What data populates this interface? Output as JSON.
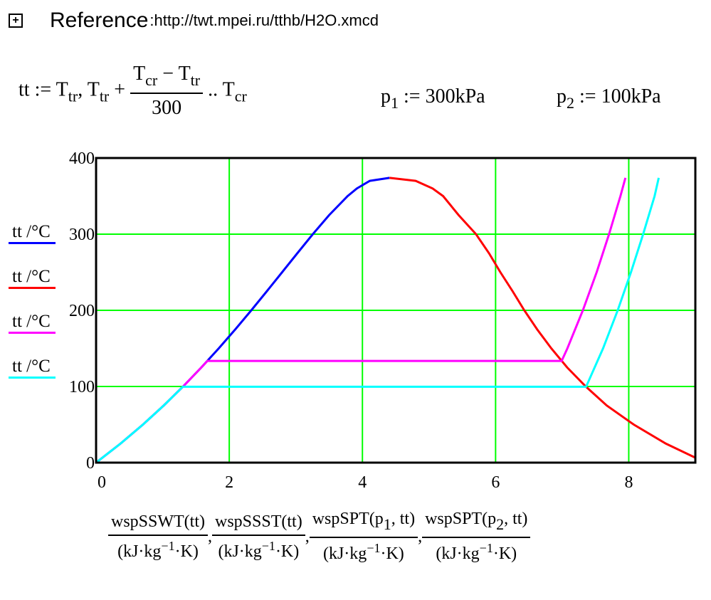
{
  "reference": {
    "label": "Reference",
    "separator": ":",
    "url": "http://twt.mpei.ru/tthb/H2O.xmcd",
    "icon": "expand-reference-icon"
  },
  "definitions": {
    "tt_lhs": "tt",
    "assign": ":=",
    "T": "T",
    "tr": "tr",
    "cr": "cr",
    "minus": "−",
    "plus": "+",
    "comma": ",",
    "range": "..",
    "divisor": "300",
    "p1_name": "p",
    "p1_sub": "1",
    "p1_value": "300kPa",
    "p2_name": "p",
    "p2_sub": "2",
    "p2_value": "100kPa"
  },
  "legend": [
    {
      "label": "tt /°C",
      "color": "#0000ff"
    },
    {
      "label": "tt /°C",
      "color": "#ff0000"
    },
    {
      "label": "tt /°C",
      "color": "#ff00ff"
    },
    {
      "label": "tt /°C",
      "color": "#00ffff"
    }
  ],
  "xaxis_label": {
    "den": "kJ·kg",
    "exp": "−1",
    "den_end": "·K",
    "terms": [
      {
        "fn": "wspSSWT(tt)"
      },
      {
        "fn": "wspSSST(tt)"
      },
      {
        "fn": "wspSPT(p",
        "sub": "1",
        "end": ", tt)"
      },
      {
        "fn": "wspSPT(p",
        "sub": "2",
        "end": ", tt)"
      }
    ]
  },
  "chart_data": {
    "type": "line",
    "xlim": [
      0,
      9
    ],
    "ylim": [
      0,
      400
    ],
    "xticks": [
      "0",
      "2",
      "4",
      "6",
      "8"
    ],
    "yticks": [
      "0",
      "100",
      "200",
      "300",
      "400"
    ],
    "grid": true,
    "grid_color": "#00ff00",
    "legend_placement": "left",
    "series": [
      {
        "name": "wspSSWT(tt)",
        "color": "#0000ff",
        "points": [
          [
            0,
            0.01
          ],
          [
            0.367,
            25
          ],
          [
            0.704,
            50
          ],
          [
            1.016,
            75
          ],
          [
            1.307,
            100
          ],
          [
            1.581,
            125
          ],
          [
            1.842,
            150
          ],
          [
            2.091,
            175
          ],
          [
            2.331,
            200
          ],
          [
            2.564,
            225
          ],
          [
            2.794,
            250
          ],
          [
            3.023,
            275
          ],
          [
            3.255,
            300
          ],
          [
            3.5,
            325
          ],
          [
            3.778,
            350
          ],
          [
            3.916,
            360
          ],
          [
            4.111,
            370
          ],
          [
            4.407,
            373.95
          ]
        ]
      },
      {
        "name": "wspSSST(tt)",
        "color": "#ff0000",
        "points": [
          [
            4.407,
            373.95
          ],
          [
            4.8,
            370
          ],
          [
            5.054,
            360
          ],
          [
            5.212,
            350
          ],
          [
            5.445,
            325
          ],
          [
            5.706,
            300
          ],
          [
            5.901,
            275
          ],
          [
            6.072,
            250
          ],
          [
            6.256,
            225
          ],
          [
            6.431,
            200
          ],
          [
            6.624,
            175
          ],
          [
            6.837,
            150
          ],
          [
            7.075,
            125
          ],
          [
            7.354,
            100
          ],
          [
            7.669,
            75
          ],
          [
            8.075,
            50
          ],
          [
            8.557,
            25
          ],
          [
            9.155,
            0.01
          ]
        ]
      },
      {
        "name": "wspSPT(p1,tt)",
        "color": "#ff00ff",
        "points": [
          [
            0,
            0.01
          ],
          [
            0.367,
            25
          ],
          [
            0.704,
            50
          ],
          [
            1.016,
            75
          ],
          [
            1.307,
            100
          ],
          [
            1.581,
            125
          ],
          [
            1.672,
            133.5
          ],
          [
            6.992,
            133.5
          ],
          [
            7.078,
            150
          ],
          [
            7.311,
            200
          ],
          [
            7.518,
            250
          ],
          [
            7.704,
            300
          ],
          [
            7.875,
            350
          ],
          [
            7.95,
            373.95
          ]
        ]
      },
      {
        "name": "wspSPT(p2,tt)",
        "color": "#00ffff",
        "points": [
          [
            0,
            0.01
          ],
          [
            0.367,
            25
          ],
          [
            0.704,
            50
          ],
          [
            1.016,
            75
          ],
          [
            1.303,
            99.6
          ],
          [
            7.359,
            99.6
          ],
          [
            7.614,
            150
          ],
          [
            7.834,
            200
          ],
          [
            8.033,
            250
          ],
          [
            8.216,
            300
          ],
          [
            8.388,
            350
          ],
          [
            8.45,
            373.95
          ]
        ]
      }
    ]
  }
}
